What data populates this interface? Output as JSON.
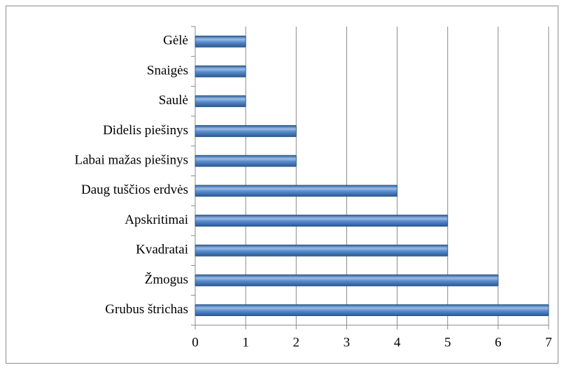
{
  "chart_data": {
    "type": "barh",
    "categories": [
      "Gėlė",
      "Snaigės",
      "Saulė",
      "Didelis piešinys",
      "Labai mažas piešinys",
      "Daug tuščios erdvės",
      "Apskritimai",
      "Kvadratai",
      "Žmogus",
      "Grubus štrichas"
    ],
    "values": [
      1,
      1,
      1,
      2,
      2,
      4,
      5,
      5,
      6,
      7
    ],
    "color": "#4a7ebb",
    "xlim": [
      0,
      7
    ],
    "xticks": [
      0,
      1,
      2,
      3,
      4,
      5,
      6,
      7
    ],
    "grid": true
  }
}
